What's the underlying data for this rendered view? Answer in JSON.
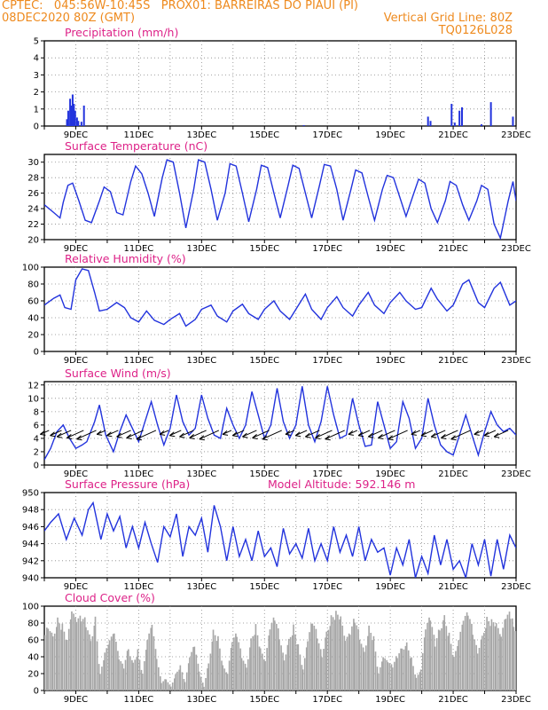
{
  "header": {
    "left_line1": "CPTEC:   045:56W-10:45S   PROX01: BARREIRAS DO PIAUI (PI)",
    "left_line2": "08DEC2020 80Z (GMT)",
    "right_line2": "Vertical Grid Line: 80Z",
    "right_line3": "TQ0126L028"
  },
  "colors": {
    "header": "#ee8a1e",
    "title": "#dd2288",
    "line": "#2233dd",
    "cloud": "#a8a8a8",
    "arrow": "#000000"
  },
  "chart_data": [
    {
      "type": "bar",
      "title": "Precipitation (mm/h)",
      "x_tick_labels": [
        "9DEC",
        "11DEC",
        "13DEC",
        "15DEC",
        "17DEC",
        "19DEC",
        "21DEC",
        "23DEC"
      ],
      "ylim": [
        0,
        5
      ],
      "y_ticks": [
        0,
        1,
        2,
        3,
        4,
        5
      ],
      "x_range_days": [
        8.0,
        23.0
      ],
      "bars": [
        {
          "day": 8.72,
          "value": 0.4
        },
        {
          "day": 8.76,
          "value": 0.9
        },
        {
          "day": 8.82,
          "value": 1.6
        },
        {
          "day": 8.86,
          "value": 1.2
        },
        {
          "day": 8.9,
          "value": 1.85
        },
        {
          "day": 8.94,
          "value": 1.3
        },
        {
          "day": 8.98,
          "value": 0.9
        },
        {
          "day": 9.04,
          "value": 0.5
        },
        {
          "day": 9.08,
          "value": 0.3
        },
        {
          "day": 9.18,
          "value": 0.25
        },
        {
          "day": 9.26,
          "value": 1.2
        },
        {
          "day": 16.25,
          "value": 0.05
        },
        {
          "day": 20.2,
          "value": 0.55
        },
        {
          "day": 20.28,
          "value": 0.3
        },
        {
          "day": 20.95,
          "value": 1.3
        },
        {
          "day": 21.05,
          "value": 0.2
        },
        {
          "day": 21.2,
          "value": 0.9
        },
        {
          "day": 21.28,
          "value": 1.1
        },
        {
          "day": 21.9,
          "value": 0.1
        },
        {
          "day": 22.2,
          "value": 1.4
        },
        {
          "day": 22.9,
          "value": 0.55
        }
      ]
    },
    {
      "type": "line",
      "title": "Surface Temperature (nC)",
      "x_tick_labels": [
        "9DEC",
        "11DEC",
        "13DEC",
        "15DEC",
        "17DEC",
        "19DEC",
        "21DEC",
        "23DEC"
      ],
      "ylim": [
        20,
        31
      ],
      "y_ticks": [
        20,
        22,
        24,
        26,
        28,
        30
      ],
      "x_range_days": [
        8.0,
        23.0
      ],
      "x": [
        8.0,
        8.3,
        8.5,
        8.6,
        8.75,
        8.9,
        9.1,
        9.3,
        9.5,
        9.75,
        9.9,
        10.1,
        10.3,
        10.5,
        10.75,
        10.9,
        11.1,
        11.3,
        11.5,
        11.75,
        11.9,
        12.1,
        12.3,
        12.5,
        12.75,
        12.9,
        13.1,
        13.3,
        13.5,
        13.75,
        13.9,
        14.1,
        14.3,
        14.5,
        14.75,
        14.9,
        15.1,
        15.3,
        15.5,
        15.75,
        15.9,
        16.1,
        16.3,
        16.5,
        16.75,
        16.9,
        17.1,
        17.3,
        17.5,
        17.75,
        17.9,
        18.1,
        18.3,
        18.5,
        18.75,
        18.9,
        19.1,
        19.3,
        19.5,
        19.75,
        19.9,
        20.1,
        20.3,
        20.5,
        20.75,
        20.9,
        21.1,
        21.3,
        21.5,
        21.75,
        21.9,
        22.1,
        22.3,
        22.5,
        22.75,
        22.9,
        23.0
      ],
      "y": [
        24.5,
        23.5,
        22.8,
        24.8,
        27.0,
        27.3,
        25.0,
        22.5,
        22.2,
        25.0,
        26.8,
        26.2,
        23.5,
        23.2,
        27.5,
        29.5,
        28.5,
        26.0,
        23.0,
        28.0,
        30.3,
        30.0,
        26.0,
        21.5,
        26.5,
        30.3,
        30.0,
        26.5,
        22.5,
        26.0,
        29.8,
        29.5,
        26.0,
        22.3,
        26.5,
        29.6,
        29.3,
        26.0,
        22.8,
        27.0,
        29.6,
        29.2,
        26.0,
        22.8,
        27.0,
        29.7,
        29.5,
        26.5,
        22.5,
        26.5,
        29.0,
        28.6,
        25.5,
        22.5,
        26.5,
        28.3,
        28.0,
        25.5,
        23.0,
        26.0,
        27.8,
        27.3,
        24.0,
        22.2,
        25.0,
        27.5,
        27.0,
        24.5,
        22.5,
        25.0,
        27.0,
        26.5,
        22.0,
        20.2,
        25.0,
        27.5,
        25.0
      ]
    },
    {
      "type": "line",
      "title": "Relative Humidity (%)",
      "x_tick_labels": [
        "9DEC",
        "11DEC",
        "13DEC",
        "15DEC",
        "17DEC",
        "19DEC",
        "21DEC",
        "23DEC"
      ],
      "ylim": [
        0,
        100
      ],
      "y_ticks": [
        0,
        20,
        40,
        60,
        80,
        100
      ],
      "x_range_days": [
        8.0,
        23.0
      ],
      "x": [
        8.0,
        8.3,
        8.5,
        8.65,
        8.85,
        9.0,
        9.2,
        9.4,
        9.6,
        9.75,
        10.0,
        10.3,
        10.55,
        10.75,
        11.0,
        11.25,
        11.5,
        11.8,
        12.0,
        12.3,
        12.5,
        12.8,
        13.0,
        13.3,
        13.5,
        13.8,
        14.0,
        14.3,
        14.5,
        14.8,
        15.0,
        15.3,
        15.5,
        15.8,
        16.0,
        16.3,
        16.5,
        16.8,
        17.0,
        17.3,
        17.5,
        17.8,
        18.0,
        18.3,
        18.5,
        18.8,
        19.0,
        19.3,
        19.5,
        19.8,
        20.0,
        20.3,
        20.5,
        20.8,
        21.0,
        21.3,
        21.5,
        21.8,
        22.0,
        22.3,
        22.5,
        22.8,
        23.0
      ],
      "y": [
        55,
        63,
        67,
        52,
        50,
        85,
        98,
        96,
        70,
        48,
        50,
        58,
        52,
        40,
        35,
        48,
        37,
        32,
        38,
        45,
        30,
        38,
        50,
        55,
        42,
        35,
        48,
        56,
        45,
        38,
        50,
        60,
        48,
        38,
        50,
        68,
        50,
        38,
        52,
        65,
        52,
        42,
        55,
        70,
        55,
        45,
        58,
        70,
        60,
        50,
        52,
        75,
        62,
        48,
        55,
        80,
        85,
        58,
        52,
        75,
        82,
        55,
        60
      ]
    },
    {
      "type": "line",
      "title": "Surface Wind (m/s)",
      "x_tick_labels": [
        "9DEC",
        "11DEC",
        "13DEC",
        "15DEC",
        "17DEC",
        "19DEC",
        "21DEC",
        "23DEC"
      ],
      "ylim": [
        0,
        12.5
      ],
      "y_ticks": [
        0,
        2,
        4,
        6,
        8,
        10,
        12
      ],
      "x_range_days": [
        8.0,
        23.0
      ],
      "x": [
        8.0,
        8.2,
        8.4,
        8.6,
        8.8,
        9.0,
        9.2,
        9.35,
        9.6,
        9.75,
        9.95,
        10.2,
        10.4,
        10.6,
        10.8,
        11.0,
        11.2,
        11.4,
        11.6,
        11.8,
        12.0,
        12.2,
        12.4,
        12.6,
        12.8,
        13.0,
        13.2,
        13.4,
        13.6,
        13.8,
        14.0,
        14.2,
        14.4,
        14.6,
        14.8,
        15.0,
        15.2,
        15.4,
        15.6,
        15.8,
        16.0,
        16.2,
        16.4,
        16.6,
        16.8,
        17.0,
        17.2,
        17.4,
        17.6,
        17.8,
        18.0,
        18.2,
        18.4,
        18.6,
        18.8,
        19.0,
        19.2,
        19.4,
        19.6,
        19.8,
        20.0,
        20.2,
        20.4,
        20.6,
        20.8,
        21.0,
        21.2,
        21.4,
        21.6,
        21.8,
        22.0,
        22.2,
        22.4,
        22.6,
        22.8,
        23.0
      ],
      "y": [
        0.8,
        2.5,
        5.0,
        6.0,
        4.0,
        2.5,
        3.0,
        3.5,
        6.5,
        9.0,
        4.5,
        2.0,
        5.0,
        7.5,
        5.5,
        3.5,
        6.5,
        9.5,
        6.0,
        3.0,
        5.5,
        10.5,
        6.5,
        4.5,
        5.5,
        10.5,
        7.0,
        4.5,
        4.0,
        8.5,
        6.0,
        4.0,
        6.0,
        11.0,
        7.5,
        4.0,
        6.0,
        11.5,
        6.5,
        4.0,
        6.0,
        11.8,
        6.0,
        3.5,
        6.5,
        11.8,
        7.5,
        4.0,
        4.5,
        10.0,
        6.0,
        2.8,
        3.0,
        9.5,
        6.0,
        2.5,
        3.5,
        9.5,
        7.0,
        2.5,
        4.0,
        10.0,
        6.0,
        3.0,
        2.0,
        1.5,
        4.5,
        7.5,
        4.5,
        1.5,
        5.0,
        8.0,
        6.0,
        5.0,
        5.5,
        4.5
      ],
      "arrow_days": [
        8.15,
        8.55,
        8.85,
        9.25,
        9.65,
        9.95,
        10.35,
        10.75,
        11.15,
        11.55,
        11.95,
        12.35,
        12.75,
        13.15,
        13.55,
        13.95,
        14.35,
        14.75,
        15.15,
        15.55,
        15.95,
        16.35,
        16.75,
        17.15,
        17.55,
        17.95,
        18.35,
        18.75,
        19.15,
        19.55,
        19.95,
        20.35,
        20.75,
        21.15,
        21.55,
        21.95,
        22.35,
        22.75
      ]
    },
    {
      "type": "line",
      "title": "Surface Pressure (hPa)",
      "annotation": "Model Altitude: 592.146 m",
      "x_tick_labels": [
        "9DEC",
        "11DEC",
        "13DEC",
        "15DEC",
        "17DEC",
        "19DEC",
        "21DEC",
        "23DEC"
      ],
      "ylim": [
        940,
        950
      ],
      "y_ticks": [
        940,
        942,
        944,
        946,
        948,
        950
      ],
      "x_range_days": [
        8.0,
        23.0
      ],
      "x": [
        8.0,
        8.2,
        8.45,
        8.7,
        8.95,
        9.2,
        9.4,
        9.55,
        9.8,
        10.0,
        10.2,
        10.4,
        10.6,
        10.8,
        11.0,
        11.2,
        11.4,
        11.6,
        11.8,
        12.0,
        12.2,
        12.4,
        12.6,
        12.8,
        13.0,
        13.2,
        13.4,
        13.6,
        13.8,
        14.0,
        14.2,
        14.4,
        14.6,
        14.8,
        15.0,
        15.2,
        15.4,
        15.6,
        15.8,
        16.0,
        16.2,
        16.4,
        16.6,
        16.8,
        17.0,
        17.2,
        17.4,
        17.6,
        17.8,
        18.0,
        18.2,
        18.4,
        18.6,
        18.8,
        19.0,
        19.2,
        19.4,
        19.6,
        19.8,
        20.0,
        20.2,
        20.4,
        20.6,
        20.8,
        21.0,
        21.2,
        21.4,
        21.6,
        21.8,
        22.0,
        22.2,
        22.4,
        22.6,
        22.8,
        23.0
      ],
      "y": [
        945.5,
        946.5,
        947.5,
        944.5,
        947.0,
        945.0,
        948.0,
        948.8,
        944.5,
        947.5,
        945.5,
        947.2,
        943.5,
        946.0,
        943.5,
        946.5,
        944.0,
        941.8,
        946.0,
        944.8,
        947.5,
        942.5,
        946.0,
        945.0,
        947.0,
        943.0,
        948.5,
        946.0,
        942.0,
        946.0,
        942.5,
        944.5,
        942.0,
        945.5,
        942.5,
        943.5,
        941.3,
        945.8,
        942.8,
        944.0,
        942.3,
        945.8,
        942.0,
        944.0,
        942.0,
        946.0,
        943.0,
        945.0,
        942.5,
        946.0,
        942.0,
        944.5,
        943.0,
        943.5,
        940.3,
        943.5,
        941.5,
        944.5,
        940.0,
        942.5,
        940.5,
        945.0,
        941.5,
        944.5,
        941.0,
        942.0,
        940.0,
        944.0,
        941.5,
        944.5,
        940.2,
        944.5,
        941.0,
        945.0,
        943.5
      ]
    },
    {
      "type": "area",
      "title": "Cloud Cover (%)",
      "x_tick_labels": [
        "9DEC",
        "11DEC",
        "13DEC",
        "15DEC",
        "17DEC",
        "19DEC",
        "21DEC",
        "23DEC"
      ],
      "ylim": [
        0,
        100
      ],
      "y_ticks": [
        0,
        20,
        40,
        60,
        80,
        100
      ],
      "x_range_days": [
        8.0,
        23.0
      ],
      "x": [
        8.0,
        8.1,
        8.25,
        8.4,
        8.55,
        8.7,
        8.85,
        9.0,
        9.15,
        9.3,
        9.45,
        9.6,
        9.75,
        9.9,
        10.05,
        10.2,
        10.35,
        10.5,
        10.65,
        10.8,
        10.95,
        11.1,
        11.25,
        11.4,
        11.55,
        11.7,
        11.85,
        12.0,
        12.15,
        12.3,
        12.45,
        12.6,
        12.75,
        12.9,
        13.05,
        13.2,
        13.35,
        13.5,
        13.65,
        13.8,
        13.95,
        14.1,
        14.25,
        14.4,
        14.55,
        14.7,
        14.85,
        15.0,
        15.15,
        15.3,
        15.45,
        15.6,
        15.75,
        15.9,
        16.05,
        16.2,
        16.35,
        16.5,
        16.65,
        16.8,
        16.95,
        17.1,
        17.25,
        17.4,
        17.55,
        17.7,
        17.85,
        18.0,
        18.15,
        18.3,
        18.45,
        18.6,
        18.75,
        18.9,
        19.05,
        19.2,
        19.35,
        19.5,
        19.65,
        19.8,
        19.95,
        20.1,
        20.25,
        20.4,
        20.55,
        20.7,
        20.85,
        21.0,
        21.15,
        21.3,
        21.45,
        21.6,
        21.75,
        21.9,
        22.05,
        22.2,
        22.35,
        22.5,
        22.65,
        22.8,
        22.9,
        23.0
      ],
      "y": [
        75,
        85,
        70,
        90,
        80,
        60,
        95,
        85,
        90,
        88,
        65,
        92,
        20,
        45,
        60,
        70,
        40,
        30,
        55,
        35,
        50,
        20,
        60,
        80,
        40,
        10,
        15,
        5,
        20,
        30,
        10,
        40,
        55,
        25,
        5,
        35,
        75,
        65,
        30,
        20,
        60,
        70,
        45,
        30,
        65,
        80,
        50,
        35,
        75,
        90,
        70,
        40,
        65,
        80,
        55,
        25,
        60,
        85,
        70,
        45,
        75,
        92,
        95,
        88,
        60,
        70,
        90,
        70,
        50,
        80,
        65,
        20,
        40,
        35,
        30,
        45,
        55,
        60,
        40,
        15,
        25,
        75,
        90,
        60,
        80,
        95,
        70,
        40,
        60,
        85,
        95,
        75,
        50,
        70,
        90,
        85,
        80,
        65,
        90,
        95,
        88,
        70
      ]
    }
  ]
}
